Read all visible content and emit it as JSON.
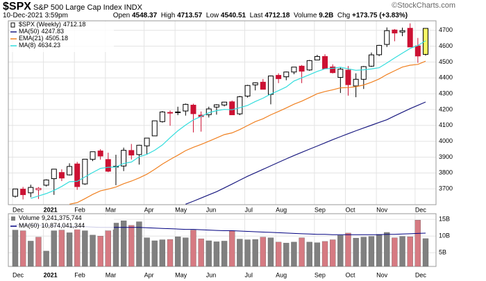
{
  "chart_data": {
    "type": "candlestick",
    "title": "$SPX",
    "subtitle": "S&P 500 Large Cap Index",
    "exchange": "INDX",
    "date": "10-Dec-2021 3:59pm",
    "credit": "©StockCharts.com",
    "quote": {
      "open_label": "Open",
      "high_label": "High",
      "low_label": "Low",
      "last_label": "Last",
      "volume_label": "Volume",
      "volume_value_label": "9.2B",
      "change_label": "Chg",
      "change": "+173.75 (+3.83%)"
    },
    "categories": [
      "Dec",
      null,
      null,
      null,
      "2021",
      null,
      null,
      null,
      "Feb",
      null,
      null,
      null,
      "Mar",
      null,
      null,
      null,
      null,
      "Apr",
      null,
      null,
      null,
      "May",
      null,
      null,
      null,
      "Jun",
      null,
      null,
      null,
      null,
      "Jul",
      null,
      null,
      null,
      "Aug",
      null,
      null,
      null,
      null,
      "Sep",
      null,
      null,
      null,
      "Oct",
      null,
      null,
      null,
      "Nov",
      null,
      null,
      null,
      null,
      "Dec",
      null
    ],
    "ohlc": {
      "name": "$SPX (Weekly)",
      "open": [
        3653,
        3698,
        3675,
        3694,
        3723,
        3764,
        3803,
        3788,
        3857,
        3731,
        3886,
        3939,
        3885,
        3842,
        3844,
        3942,
        3916,
        3971,
        4034,
        4124,
        4182,
        4185,
        4191,
        4228,
        4165,
        4168,
        4216,
        4229,
        4249,
        4173,
        4285,
        4356,
        4373,
        4296,
        4416,
        4407,
        4437,
        4474,
        4450,
        4513,
        4535,
        4469,
        4403,
        4449,
        4349,
        4391,
        4474,
        4546,
        4611,
        4702,
        4689,
        4713,
        4602,
        4548.37
      ],
      "high": [
        3699,
        3712,
        3726,
        3711,
        3760,
        3826,
        3823,
        3861,
        3870,
        3887,
        3934,
        3950,
        3928,
        3915,
        3960,
        3983,
        3978,
        4020,
        4129,
        4191,
        4194,
        4218,
        4238,
        4237,
        4188,
        4218,
        4234,
        4249,
        4257,
        4286,
        4356,
        4372,
        4393,
        4415,
        4429,
        4440,
        4469,
        4481,
        4513,
        4545,
        4549,
        4485,
        4465,
        4475,
        4429,
        4475,
        4560,
        4608,
        4718,
        4708,
        4717,
        4744,
        4652,
        4713.57
      ],
      "low": [
        3645,
        3633,
        3647,
        3636,
        3715,
        3662,
        3749,
        3784,
        3694,
        3725,
        3875,
        3884,
        3805,
        3723,
        3812,
        3885,
        3853,
        3917,
        4034,
        4118,
        4098,
        4165,
        4162,
        4056,
        4061,
        4150,
        4168,
        4220,
        4165,
        4165,
        4276,
        4321,
        4328,
        4233,
        4367,
        4385,
        4423,
        4367,
        4444,
        4513,
        4458,
        4428,
        4305,
        4288,
        4278,
        4330,
        4469,
        4537,
        4595,
        4631,
        4663,
        4594,
        4495,
        4540.51
      ],
      "close": [
        3699,
        3663,
        3709,
        3703,
        3756,
        3824,
        3768,
        3841,
        3714,
        3887,
        3934,
        3907,
        3811,
        3842,
        3943,
        3913,
        3975,
        4020,
        4129,
        4185,
        4180,
        4181,
        4233,
        4174,
        4156,
        4204,
        4230,
        4247,
        4167,
        4281,
        4352,
        4369,
        4328,
        4412,
        4395,
        4437,
        4468,
        4442,
        4509,
        4535,
        4458,
        4433,
        4455,
        4357,
        4391,
        4471,
        4545,
        4605,
        4698,
        4683,
        4698,
        4595,
        4538,
        4712.18
      ]
    },
    "up_color": "#000000",
    "down_color": "#cc1133",
    "highlight_color": "#ffff66",
    "series": [
      {
        "name": "MA(50)",
        "color": "#1a1a80",
        "values": [
          null,
          null,
          null,
          null,
          null,
          null,
          null,
          null,
          null,
          null,
          null,
          null,
          null,
          null,
          null,
          null,
          null,
          null,
          null,
          null,
          null,
          null,
          3603,
          3622,
          3642,
          3662,
          3682,
          3706,
          3730,
          3755,
          3779,
          3801,
          3823,
          3845,
          3867,
          3889,
          3910,
          3930,
          3950,
          3970,
          3990,
          4010,
          4029,
          4048,
          4066,
          4084,
          4101,
          4119,
          4136,
          4160,
          4183,
          4206,
          4227,
          4247.83
        ]
      },
      {
        "name": "EMA(21)",
        "color": "#f08020",
        "values": [
          null,
          null,
          null,
          null,
          null,
          null,
          null,
          3603,
          3613,
          3638,
          3665,
          3687,
          3698,
          3711,
          3732,
          3749,
          3769,
          3792,
          3823,
          3856,
          3885,
          3912,
          3941,
          3962,
          3980,
          4000,
          4021,
          4042,
          4053,
          4074,
          4099,
          4124,
          4142,
          4167,
          4188,
          4210,
          4234,
          4253,
          4276,
          4300,
          4314,
          4325,
          4337,
          4339,
          4344,
          4355,
          4372,
          4393,
          4421,
          4445,
          4468,
          4480,
          4485,
          4505.18
        ]
      },
      {
        "name": "MA(8)",
        "color": "#33dddd",
        "values": [
          null,
          null,
          3640,
          3655,
          3670,
          3690,
          3715,
          3745,
          3747,
          3775,
          3803,
          3829,
          3836,
          3838,
          3860,
          3869,
          3902,
          3918,
          3943,
          3977,
          4023,
          4066,
          4102,
          4135,
          4157,
          4180,
          4193,
          4201,
          4199,
          4212,
          4226,
          4251,
          4272,
          4298,
          4319,
          4343,
          4380,
          4400,
          4420,
          4441,
          4457,
          4460,
          4467,
          4457,
          4448,
          4451,
          4456,
          4464,
          4494,
          4526,
          4556,
          4586,
          4604,
          4634.23
        ]
      }
    ],
    "ylim": [
      3600,
      4760
    ],
    "yticks": [
      3700,
      3800,
      3900,
      4000,
      4100,
      4200,
      4300,
      4400,
      4500,
      4600,
      4700
    ],
    "grid": true,
    "volume": {
      "type": "bar",
      "name": "Volume",
      "up_color": "#808080",
      "down_color": "#d67a82",
      "values": [
        11.8,
        11.6,
        8.5,
        9.7,
        5.5,
        11.6,
        11.8,
        11.0,
        12.1,
        11.6,
        10.3,
        10.0,
        11.6,
        13.9,
        14.6,
        13.2,
        14.3,
        9.5,
        8.6,
        8.9,
        9.0,
        9.8,
        9.5,
        11.8,
        9.2,
        8.6,
        8.3,
        8.5,
        11.6,
        9.1,
        8.9,
        9.0,
        9.7,
        9.5,
        8.2,
        7.9,
        8.2,
        9.5,
        8.2,
        8.0,
        8.4,
        8.9,
        10.2,
        10.9,
        9.4,
        9.7,
        9.9,
        10.5,
        11.1,
        9.5,
        9.9,
        9.8,
        14.8,
        9.241375744
      ],
      "last_label": "9,241,375,744",
      "ylim": [
        0.9,
        16.7
      ],
      "yticks": [
        {
          "value": 15,
          "label": "15B"
        },
        {
          "value": 10,
          "label": "10B"
        },
        {
          "value": 5,
          "label": "5B"
        }
      ],
      "average": {
        "name": "MA(60)",
        "color": "#000080",
        "last_label": "10,874,041,344",
        "values": [
          13.4,
          13.35,
          13.3,
          13.2,
          13.1,
          13.0,
          13.0,
          12.9,
          12.8,
          12.8,
          12.7,
          12.6,
          12.6,
          12.6,
          12.6,
          12.6,
          12.6,
          12.5,
          12.4,
          12.3,
          12.2,
          12.1,
          12.0,
          12.0,
          11.9,
          11.8,
          11.7,
          11.6,
          11.6,
          11.5,
          11.4,
          11.3,
          11.2,
          11.1,
          11.0,
          10.9,
          10.8,
          10.7,
          10.6,
          10.5,
          10.5,
          10.4,
          10.4,
          10.4,
          10.4,
          10.4,
          10.4,
          10.4,
          10.5,
          10.5,
          10.6,
          10.7,
          10.8,
          10.874041344
        ]
      }
    }
  }
}
